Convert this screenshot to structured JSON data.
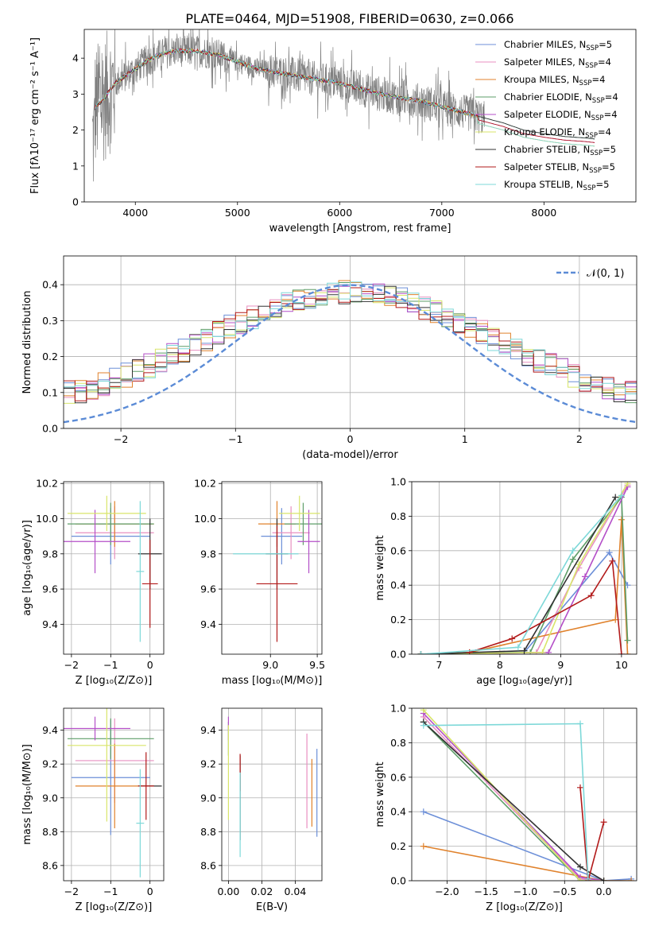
{
  "figure": {
    "title": "PLATE=0464, MJD=51908, FIBERID=0630, z=0.066"
  },
  "colors": {
    "model_colors": [
      "#6c8fd8",
      "#e88fc0",
      "#e0822c",
      "#5e9e68",
      "#b44fc8",
      "#d8e56a",
      "#333333",
      "#b21a1a",
      "#7dd8d8"
    ],
    "data": "#808080",
    "normal_curve": "#5b8bd6"
  },
  "chart_data": [
    {
      "id": "spectrum",
      "type": "line",
      "xlabel": "wavelength [Angstrom, rest frame]",
      "ylabel": "Flux [fλ10⁻¹⁷ erg cm⁻² s⁻¹ A⁻¹]",
      "xlim": [
        3500,
        8900
      ],
      "ylim": [
        0,
        4.8
      ],
      "xticks": [
        "4000",
        "5000",
        "6000",
        "7000",
        "8000"
      ],
      "xtick_values": [
        4000,
        5000,
        6000,
        7000,
        8000
      ],
      "yticks": [
        "0",
        "1",
        "2",
        "3",
        "4"
      ],
      "ytick_values": [
        0,
        1,
        2,
        3,
        4
      ],
      "data_range": [
        3580,
        7420
      ],
      "continuum": [
        [
          3600,
          2.6
        ],
        [
          3700,
          2.9
        ],
        [
          3800,
          3.3
        ],
        [
          3900,
          3.5
        ],
        [
          4000,
          3.7
        ],
        [
          4100,
          3.9
        ],
        [
          4200,
          4.05
        ],
        [
          4300,
          4.15
        ],
        [
          4400,
          4.2
        ],
        [
          4600,
          4.2
        ],
        [
          4800,
          4.1
        ],
        [
          5000,
          3.9
        ],
        [
          5200,
          3.7
        ],
        [
          5400,
          3.6
        ],
        [
          5600,
          3.5
        ],
        [
          5800,
          3.4
        ],
        [
          6000,
          3.3
        ],
        [
          6200,
          3.15
        ],
        [
          6400,
          3.0
        ],
        [
          6600,
          2.9
        ],
        [
          6800,
          2.8
        ],
        [
          7000,
          2.65
        ],
        [
          7200,
          2.5
        ],
        [
          7400,
          2.35
        ],
        [
          7600,
          2.2
        ],
        [
          7800,
          2.0
        ],
        [
          8000,
          1.9
        ],
        [
          8200,
          1.82
        ],
        [
          8400,
          1.78
        ],
        [
          8500,
          1.75
        ]
      ],
      "legend": [
        {
          "label": "Chabrier MILES, N",
          "sub": "SSP",
          "suffix": "=5"
        },
        {
          "label": "Salpeter MILES, N",
          "sub": "SSP",
          "suffix": "=4"
        },
        {
          "label": "Kroupa MILES, N",
          "sub": "SSP",
          "suffix": "=4"
        },
        {
          "label": "Chabrier ELODIE, N",
          "sub": "SSP",
          "suffix": "=4"
        },
        {
          "label": "Salpeter ELODIE, N",
          "sub": "SSP",
          "suffix": "=4"
        },
        {
          "label": "Kroupa ELODIE, N",
          "sub": "SSP",
          "suffix": "=4"
        },
        {
          "label": "Chabrier STELIB, N",
          "sub": "SSP",
          "suffix": "=5"
        },
        {
          "label": "Salpeter STELIB, N",
          "sub": "SSP",
          "suffix": "=5"
        },
        {
          "label": "Kroupa STELIB, N",
          "sub": "SSP",
          "suffix": "=5"
        }
      ]
    },
    {
      "id": "residuals",
      "type": "histogram",
      "xlabel": "(data-model)/error",
      "ylabel": "Normed distribution",
      "xlim": [
        -2.5,
        2.5
      ],
      "ylim": [
        0,
        0.48
      ],
      "xticks": [
        "−2",
        "−1",
        "0",
        "1",
        "2"
      ],
      "xtick_values": [
        -2,
        -1,
        0,
        1,
        2
      ],
      "yticks": [
        "0.0",
        "0.1",
        "0.2",
        "0.3",
        "0.4"
      ],
      "ytick_values": [
        0,
        0.1,
        0.2,
        0.3,
        0.4
      ],
      "bin_width": 0.1,
      "legend": [
        {
          "label": "𝒩(0, 1)"
        }
      ]
    },
    {
      "id": "age-vs-Z",
      "type": "errorbar",
      "xlabel": "Z [log₁₀(Z/Z⊙)]",
      "ylabel": "age  [log₁₀(age/yr)]",
      "xlim": [
        -2.2,
        0.35
      ],
      "ylim": [
        9.23,
        10.21
      ],
      "xticks": [
        "−2",
        "−1",
        "0"
      ],
      "xtick_values": [
        -2,
        -1,
        0
      ],
      "yticks": [
        "9.4",
        "9.6",
        "9.8",
        "10.0",
        "10.2"
      ],
      "ytick_values": [
        9.4,
        9.6,
        9.8,
        10.0,
        10.2
      ],
      "points": [
        {
          "x": -1.0,
          "xerr": 1.0,
          "y": 9.9,
          "yerr": 0.16
        },
        {
          "x": -0.9,
          "xerr": 1.0,
          "y": 9.92,
          "yerr": 0.15
        },
        {
          "x": -0.9,
          "xerr": 1.0,
          "y": 9.97,
          "yerr": 0.13
        },
        {
          "x": -1.0,
          "xerr": 1.1,
          "y": 9.97,
          "yerr": 0.12
        },
        {
          "x": -1.4,
          "xerr": 0.9,
          "y": 9.87,
          "yerr": 0.18
        },
        {
          "x": -1.1,
          "xerr": 1.0,
          "y": 10.03,
          "yerr": 0.1
        },
        {
          "x": 0.0,
          "xerr": 0.3,
          "y": 9.8,
          "yerr": 0.2
        },
        {
          "x": 0.0,
          "xerr": 0.2,
          "y": 9.63,
          "yerr": 0.25
        },
        {
          "x": -0.25,
          "xerr": 0.1,
          "y": 9.7,
          "yerr": 0.4
        }
      ]
    },
    {
      "id": "age-vs-mass",
      "type": "errorbar",
      "xlabel": "mass [log₁₀(M/M⊙)]",
      "ylabel": "",
      "xlim": [
        8.48,
        9.55
      ],
      "ylim": [
        9.23,
        10.21
      ],
      "xticks": [
        "9.0",
        "9.5"
      ],
      "xtick_values": [
        9.0,
        9.5
      ],
      "yticks": [
        "9.4",
        "9.6",
        "9.8",
        "10.0",
        "10.2"
      ],
      "ytick_values": [
        9.4,
        9.6,
        9.8,
        10.0,
        10.2
      ],
      "points": [
        {
          "x": 9.12,
          "xerr": 0.22,
          "y": 9.9,
          "yerr": 0.16
        },
        {
          "x": 9.22,
          "xerr": 0.2,
          "y": 9.92,
          "yerr": 0.15
        },
        {
          "x": 9.07,
          "xerr": 0.2,
          "y": 9.97,
          "yerr": 0.13
        },
        {
          "x": 9.35,
          "xerr": 0.2,
          "y": 9.97,
          "yerr": 0.12
        },
        {
          "x": 9.41,
          "xerr": 0.12,
          "y": 9.87,
          "yerr": 0.18
        },
        {
          "x": 9.31,
          "xerr": 0.22,
          "y": 10.03,
          "yerr": 0.1
        },
        {
          "x": 9.07,
          "xerr": 0.12,
          "y": 9.8,
          "yerr": 0.2
        },
        {
          "x": 9.07,
          "xerr": 0.22,
          "y": 9.63,
          "yerr": 0.33
        },
        {
          "x": 8.95,
          "xerr": 0.35,
          "y": 9.8,
          "yerr": 0.0
        }
      ]
    },
    {
      "id": "weight-vs-age",
      "type": "line",
      "xlabel": "age  [log₁₀(age/yr)]",
      "ylabel": "mass weight",
      "xlim": [
        6.55,
        10.25
      ],
      "ylim": [
        0,
        1.0
      ],
      "xticks": [
        "7",
        "8",
        "9",
        "10"
      ],
      "xtick_values": [
        7,
        8,
        9,
        10
      ],
      "yticks": [
        "0.0",
        "0.2",
        "0.4",
        "0.6",
        "0.8",
        "1.0"
      ],
      "ytick_values": [
        0,
        0.2,
        0.4,
        0.6,
        0.8,
        1.0
      ],
      "series": [
        {
          "points": [
            [
              6.7,
              0.0
            ],
            [
              7.6,
              0.01
            ],
            [
              8.4,
              0.01
            ],
            [
              9.8,
              0.59
            ],
            [
              10.1,
              0.4
            ]
          ]
        },
        {
          "points": [
            [
              6.7,
              0.0
            ],
            [
              8.6,
              0.01
            ],
            [
              9.3,
              0.5
            ],
            [
              10.1,
              0.98
            ]
          ]
        },
        {
          "points": [
            [
              6.7,
              0.0
            ],
            [
              7.5,
              0.01
            ],
            [
              9.9,
              0.2
            ],
            [
              10.0,
              0.78
            ],
            [
              10.1,
              0.0
            ]
          ]
        },
        {
          "points": [
            [
              6.7,
              0.0
            ],
            [
              8.5,
              0.01
            ],
            [
              9.2,
              0.55
            ],
            [
              10.0,
              0.91
            ],
            [
              10.1,
              0.08
            ]
          ]
        },
        {
          "points": [
            [
              6.7,
              0.0
            ],
            [
              8.8,
              0.01
            ],
            [
              9.4,
              0.45
            ],
            [
              10.1,
              0.97
            ]
          ]
        },
        {
          "points": [
            [
              6.7,
              0.0
            ],
            [
              8.7,
              0.01
            ],
            [
              9.3,
              0.52
            ],
            [
              10.1,
              0.99
            ]
          ]
        },
        {
          "points": [
            [
              6.7,
              0.0
            ],
            [
              8.4,
              0.02
            ],
            [
              9.9,
              0.91
            ]
          ]
        },
        {
          "points": [
            [
              7.5,
              0.01
            ],
            [
              8.2,
              0.09
            ],
            [
              9.5,
              0.34
            ],
            [
              9.85,
              0.54
            ],
            [
              10.0,
              0.0
            ]
          ]
        },
        {
          "points": [
            [
              6.7,
              0.0
            ],
            [
              8.3,
              0.04
            ],
            [
              9.2,
              0.6
            ],
            [
              10.0,
              0.92
            ]
          ]
        }
      ]
    },
    {
      "id": "mass-vs-Z",
      "type": "errorbar",
      "xlabel": "Z [log₁₀(Z/Z⊙)]",
      "ylabel": "mass [log₁₀(M/M⊙)]",
      "xlim": [
        -2.2,
        0.35
      ],
      "ylim": [
        8.51,
        9.53
      ],
      "xticks": [
        "−2",
        "−1",
        "0"
      ],
      "xtick_values": [
        -2,
        -1,
        0
      ],
      "yticks": [
        "8.6",
        "8.8",
        "9.0",
        "9.2",
        "9.4"
      ],
      "ytick_values": [
        8.6,
        8.8,
        9.0,
        9.2,
        9.4
      ],
      "points": [
        {
          "x": -1.0,
          "xerr": 1.0,
          "y": 9.12,
          "yerr": 0.34
        },
        {
          "x": -0.9,
          "xerr": 1.0,
          "y": 9.22,
          "yerr": 0.25
        },
        {
          "x": -0.9,
          "xerr": 1.0,
          "y": 9.07,
          "yerr": 0.25
        },
        {
          "x": -1.0,
          "xerr": 1.1,
          "y": 9.35,
          "yerr": 0.12
        },
        {
          "x": -1.4,
          "xerr": 0.9,
          "y": 9.41,
          "yerr": 0.07
        },
        {
          "x": -1.1,
          "xerr": 1.0,
          "y": 9.31,
          "yerr": 0.45
        },
        {
          "x": 0.0,
          "xerr": 0.3,
          "y": 9.07,
          "yerr": 0.0
        },
        {
          "x": -0.1,
          "xerr": 0.2,
          "y": 9.07,
          "yerr": 0.2
        },
        {
          "x": -0.25,
          "xerr": 0.1,
          "y": 8.85,
          "yerr": 0.32
        }
      ]
    },
    {
      "id": "mass-vs-EBV",
      "type": "errorbar",
      "xlabel": "E(B-V)",
      "ylabel": "",
      "xlim": [
        -0.004,
        0.056
      ],
      "ylim": [
        8.51,
        9.53
      ],
      "xticks": [
        "0.00",
        "0.02",
        "0.04"
      ],
      "xtick_values": [
        0.0,
        0.02,
        0.04
      ],
      "yticks": [
        "8.6",
        "8.8",
        "9.0",
        "9.2",
        "9.4"
      ],
      "ytick_values": [
        8.6,
        8.8,
        9.0,
        9.2,
        9.4
      ],
      "points": [
        {
          "x": 0.053,
          "xerr": 0,
          "y": 9.03,
          "yerr": 0.26
        },
        {
          "x": 0.047,
          "xerr": 0,
          "y": 9.1,
          "yerr": 0.28
        },
        {
          "x": 0.05,
          "xerr": 0,
          "y": 9.03,
          "yerr": 0.2
        },
        {
          "x": 0.0,
          "xerr": 0,
          "y": 9.35,
          "yerr": 0.1
        },
        {
          "x": 0.0,
          "xerr": 0,
          "y": 9.41,
          "yerr": 0.07
        },
        {
          "x": 0.0,
          "xerr": 0,
          "y": 9.15,
          "yerr": 0.28
        },
        {
          "x": 0.007,
          "xerr": 0,
          "y": 9.0,
          "yerr": 0.25
        },
        {
          "x": 0.007,
          "xerr": 0,
          "y": 9.15,
          "yerr": 0.11
        },
        {
          "x": 0.007,
          "xerr": 0,
          "y": 8.9,
          "yerr": 0.25
        }
      ]
    },
    {
      "id": "weight-vs-Z",
      "type": "line",
      "xlabel": "Z [log₁₀(Z/Z⊙)]",
      "ylabel": "mass weight",
      "xlim": [
        -2.45,
        0.42
      ],
      "ylim": [
        0,
        1.0
      ],
      "xticks": [
        "−2.0",
        "−1.5",
        "−1.0",
        "−0.5",
        "0.0"
      ],
      "xtick_values": [
        -2.0,
        -1.5,
        -1.0,
        -0.5,
        0.0
      ],
      "yticks": [
        "0.0",
        "0.2",
        "0.4",
        "0.6",
        "0.8",
        "1.0"
      ],
      "ytick_values": [
        0,
        0.2,
        0.4,
        0.6,
        0.8,
        1.0
      ],
      "series": [
        {
          "points": [
            [
              -2.3,
              0.4
            ],
            [
              0.0,
              0.0
            ],
            [
              0.35,
              0.01
            ]
          ]
        },
        {
          "points": [
            [
              -2.3,
              0.95
            ],
            [
              -0.3,
              0.01
            ],
            [
              0.0,
              0.0
            ]
          ]
        },
        {
          "points": [
            [
              -2.3,
              0.2
            ],
            [
              0.0,
              0.0
            ],
            [
              0.35,
              0.0
            ]
          ]
        },
        {
          "points": [
            [
              -2.3,
              0.92
            ],
            [
              -0.3,
              0.0
            ],
            [
              0.0,
              0.0
            ]
          ]
        },
        {
          "points": [
            [
              -2.3,
              0.97
            ],
            [
              -0.3,
              0.02
            ],
            [
              0.0,
              0.0
            ]
          ]
        },
        {
          "points": [
            [
              -2.3,
              0.99
            ],
            [
              -0.3,
              0.0
            ],
            [
              0.0,
              0.0
            ]
          ]
        },
        {
          "points": [
            [
              -2.3,
              0.92
            ],
            [
              -0.3,
              0.08
            ],
            [
              0.0,
              0.0
            ]
          ]
        },
        {
          "points": [
            [
              -0.3,
              0.54
            ],
            [
              -0.2,
              0.0
            ],
            [
              0.0,
              0.34
            ]
          ]
        },
        {
          "points": [
            [
              -2.3,
              0.9
            ],
            [
              -0.3,
              0.91
            ],
            [
              -0.2,
              0.01
            ]
          ]
        }
      ]
    }
  ]
}
